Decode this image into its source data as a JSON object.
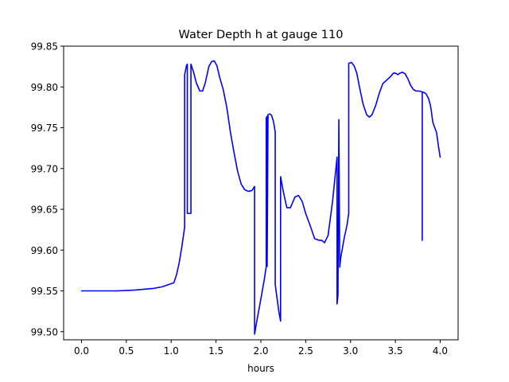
{
  "chart_data": {
    "type": "line",
    "title": "Water Depth h at gauge 110",
    "xlabel": "hours",
    "ylabel": "",
    "xlim": [
      -0.2,
      4.2
    ],
    "ylim": [
      99.49,
      99.85
    ],
    "xticks": [
      0.0,
      0.5,
      1.0,
      1.5,
      2.0,
      2.5,
      3.0,
      3.5,
      4.0
    ],
    "xtick_labels": [
      "0.0",
      "0.5",
      "1.0",
      "1.5",
      "2.0",
      "2.5",
      "3.0",
      "3.5",
      "4.0"
    ],
    "yticks": [
      99.5,
      99.55,
      99.6,
      99.65,
      99.7,
      99.75,
      99.8,
      99.85
    ],
    "ytick_labels": [
      "99.50",
      "99.55",
      "99.60",
      "99.65",
      "99.70",
      "99.75",
      "99.80",
      "99.85"
    ],
    "grid": false,
    "line_color": "#0000ff",
    "series": [
      {
        "name": "",
        "x": [
          0.0,
          0.4,
          0.6,
          0.8,
          0.9,
          0.98,
          1.03,
          1.06,
          1.09,
          1.12,
          1.15,
          1.15,
          1.17,
          1.18,
          1.18,
          1.2,
          1.2,
          1.22,
          1.22,
          1.25,
          1.28,
          1.32,
          1.35,
          1.38,
          1.42,
          1.45,
          1.48,
          1.51,
          1.54,
          1.58,
          1.62,
          1.66,
          1.7,
          1.74,
          1.78,
          1.82,
          1.86,
          1.9,
          1.93,
          1.93,
          1.95,
          2.0,
          2.04,
          2.06,
          2.06,
          2.07,
          2.07,
          2.07,
          2.08,
          2.08,
          2.1,
          2.12,
          2.14,
          2.16,
          2.16,
          2.2,
          2.22,
          2.22,
          2.25,
          2.29,
          2.33,
          2.38,
          2.42,
          2.46,
          2.5,
          2.55,
          2.6,
          2.65,
          2.68,
          2.71,
          2.75,
          2.8,
          2.85,
          2.85,
          2.86,
          2.87,
          2.87,
          2.88,
          2.89,
          2.89,
          2.93,
          2.96,
          2.98,
          2.98,
          3.01,
          3.04,
          3.07,
          3.1,
          3.14,
          3.18,
          3.21,
          3.24,
          3.28,
          3.32,
          3.36,
          3.4,
          3.44,
          3.48,
          3.5,
          3.53,
          3.55,
          3.58,
          3.61,
          3.64,
          3.67,
          3.7,
          3.73,
          3.76,
          3.8,
          3.8,
          3.8,
          3.8,
          3.84,
          3.87,
          3.89,
          3.9,
          3.91,
          3.92,
          3.94,
          3.96,
          3.98,
          4.0
        ],
        "y": [
          99.55,
          99.55,
          99.551,
          99.553,
          99.555,
          99.558,
          99.56,
          99.57,
          99.585,
          99.605,
          99.628,
          99.815,
          99.826,
          99.828,
          99.645,
          99.645,
          99.645,
          99.645,
          99.828,
          99.818,
          99.805,
          99.795,
          99.795,
          99.805,
          99.825,
          99.831,
          99.832,
          99.826,
          99.812,
          99.797,
          99.775,
          99.745,
          99.72,
          99.697,
          99.681,
          99.674,
          99.672,
          99.673,
          99.678,
          99.497,
          99.51,
          99.54,
          99.565,
          99.58,
          99.762,
          99.764,
          99.58,
          99.58,
          99.766,
          99.766,
          99.767,
          99.765,
          99.758,
          99.745,
          99.558,
          99.525,
          99.513,
          99.69,
          99.672,
          99.652,
          99.652,
          99.665,
          99.667,
          99.66,
          99.645,
          99.63,
          99.614,
          99.612,
          99.612,
          99.609,
          99.618,
          99.66,
          99.714,
          99.534,
          99.545,
          99.76,
          99.76,
          99.579,
          99.59,
          99.59,
          99.615,
          99.63,
          99.645,
          99.829,
          99.83,
          99.826,
          99.817,
          99.8,
          99.779,
          99.766,
          99.763,
          99.766,
          99.777,
          99.792,
          99.804,
          99.808,
          99.812,
          99.817,
          99.817,
          99.815,
          99.817,
          99.818,
          99.816,
          99.81,
          99.802,
          99.797,
          99.795,
          99.795,
          99.794,
          99.612,
          99.794,
          99.794,
          99.792,
          99.786,
          99.778,
          99.772,
          99.763,
          99.756,
          99.75,
          99.744,
          99.728,
          99.714
        ]
      }
    ]
  }
}
